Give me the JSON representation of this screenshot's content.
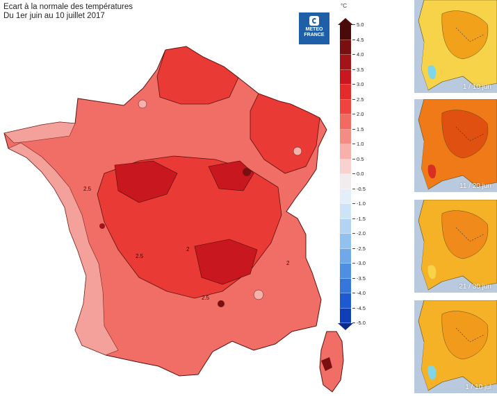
{
  "header": {
    "title": "Ecart à la normale des températures",
    "subtitle": "Du 1er juin au 10 juillet 2017"
  },
  "logo": {
    "line1": "METEO",
    "line2": "FRANCE"
  },
  "legend": {
    "unit": "°C",
    "ticks": [
      "5.0",
      "4.5",
      "4.0",
      "3.5",
      "3.0",
      "2.5",
      "2.0",
      "1.5",
      "1.0",
      "0.5",
      "0.0",
      "-0.5",
      "-1.0",
      "-1.5",
      "-2.0",
      "-2.5",
      "-3.0",
      "-3.5",
      "-4.0",
      "-4.5",
      "-5.0"
    ],
    "colors": [
      "#4a0a0a",
      "#7a0f12",
      "#a3141a",
      "#c8171f",
      "#e52a2a",
      "#f0433d",
      "#f36a62",
      "#f58c84",
      "#f7b0aa",
      "#f8d2ce",
      "#f3ecee",
      "#e4eef8",
      "#cfe3f6",
      "#b3d3f3",
      "#93c1ef",
      "#6fa9ea",
      "#4e8fe3",
      "#3476dc",
      "#1d5ad2",
      "#0f3fb8"
    ]
  },
  "map_labels": [
    "2.5",
    "2.5",
    "2.5",
    "2",
    "2"
  ],
  "thumbnails": [
    {
      "caption": "1 / 10 jun",
      "land": "#f7d34a",
      "hot": "#f2a21a",
      "cold": "#7fd6e8"
    },
    {
      "caption": "11 / 20 jun",
      "land": "#f07a18",
      "hot": "#e05010",
      "cold": "#d83020"
    },
    {
      "caption": "21 / 30 jun",
      "land": "#f6b227",
      "hot": "#f08a1a",
      "cold": "#f7d34a"
    },
    {
      "caption": "1 / 10 jul",
      "land": "#f6b227",
      "hot": "#f29a1c",
      "cold": "#7fd6e8"
    }
  ],
  "colors": {
    "sea": "#ffffff",
    "neighbor": "#b9c9de",
    "map_base": "#f06e66",
    "map_warm": "#ea3a35",
    "map_hot": "#b41a1f",
    "coast_light": "#f4a19b"
  }
}
